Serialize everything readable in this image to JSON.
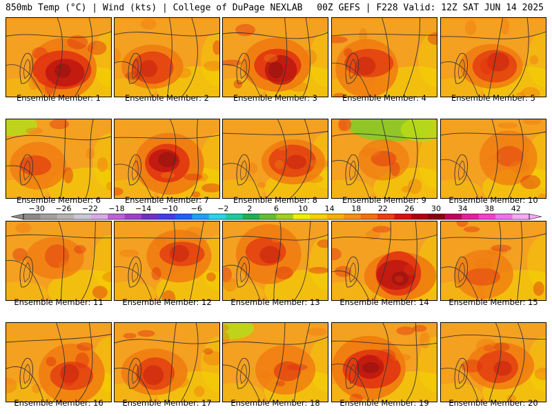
{
  "header": {
    "left": "850mb Temp (°C) | Wind (kts) | College of DuPage NEXLAB",
    "right": "00Z GEFS | F228 Valid: 12Z SAT JUN 14 2025"
  },
  "panels": [
    {
      "label": "Ensemble Member: 1",
      "theme": "hot"
    },
    {
      "label": "Ensemble Member: 2",
      "theme": "warm"
    },
    {
      "label": "Ensemble Member: 3",
      "theme": "hot"
    },
    {
      "label": "Ensemble Member: 4",
      "theme": "warm"
    },
    {
      "label": "Ensemble Member: 5",
      "theme": "warm"
    },
    {
      "label": "Ensemble Member: 6",
      "theme": "coolnw"
    },
    {
      "label": "Ensemble Member: 7",
      "theme": "hot"
    },
    {
      "label": "Ensemble Member: 8",
      "theme": "warm"
    },
    {
      "label": "Ensemble Member: 9",
      "theme": "cool"
    },
    {
      "label": "Ensemble Member: 10",
      "theme": "mild"
    },
    {
      "label": "Ensemble Member: 11",
      "theme": "mild"
    },
    {
      "label": "Ensemble Member: 12",
      "theme": "warm"
    },
    {
      "label": "Ensemble Member: 13",
      "theme": "warm"
    },
    {
      "label": "Ensemble Member: 14",
      "theme": "hot"
    },
    {
      "label": "Ensemble Member: 15",
      "theme": "mild"
    },
    {
      "label": "Ensemble Member: 16",
      "theme": "warm"
    },
    {
      "label": "Ensemble Member: 17",
      "theme": "warm"
    },
    {
      "label": "Ensemble Member: 18",
      "theme": "coolnw"
    },
    {
      "label": "Ensemble Member: 19",
      "theme": "hot"
    },
    {
      "label": "Ensemble Member: 20",
      "theme": "warm"
    }
  ],
  "colorbar": {
    "labels": [
      "−30",
      "−26",
      "−22",
      "−18",
      "−14",
      "−10",
      "−6",
      "−2",
      "2",
      "6",
      "10",
      "14",
      "18",
      "22",
      "26",
      "30",
      "34",
      "38",
      "42"
    ],
    "colors": [
      "#8a8a8a",
      "#a0a0a0",
      "#b4b4b4",
      "#c8c8d8",
      "#d8a8e8",
      "#c060d8",
      "#a040c8",
      "#7030c0",
      "#4040e0",
      "#2060f0",
      "#20a0f0",
      "#30d0f0",
      "#20c8a0",
      "#20b050",
      "#60c030",
      "#a0d020",
      "#f0f000",
      "#f8d000",
      "#f8b000",
      "#f59010",
      "#f07010",
      "#e84010",
      "#d81010",
      "#b00010",
      "#880010",
      "#c00060",
      "#e020a0",
      "#f040d0",
      "#f070f0",
      "#f8a8f8"
    ]
  },
  "panel_colors": {
    "base": "#f4a020",
    "yellow": "#f2d800",
    "orange": "#f07a10",
    "red": "#e03010",
    "darkred": "#b81010",
    "maroon": "#8a1010",
    "green": "#8cc828",
    "lightgreen": "#b8d818"
  }
}
